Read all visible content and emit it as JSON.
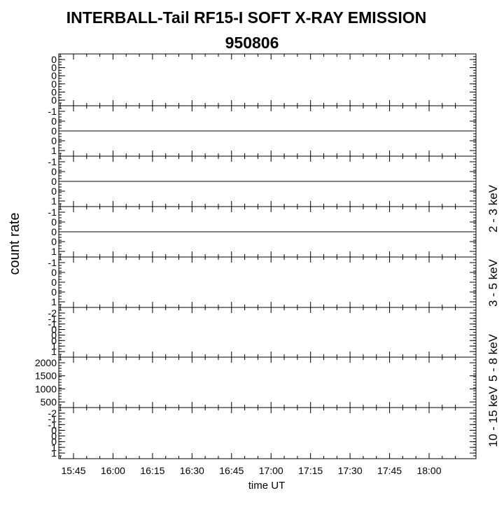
{
  "chart_data": {
    "type": "line",
    "title": "INTERBALL-Tail RF15-I SOFT X-RAY EMISSION",
    "subtitle": "950806",
    "xlabel": "time UT",
    "ylabel": "count rate",
    "x_ticks": [
      "15:45",
      "16:00",
      "16:15",
      "16:30",
      "16:45",
      "17:00",
      "17:15",
      "17:30",
      "17:45",
      "18:00"
    ],
    "energy_labels": [
      "2 - 3 keV",
      "3 - 5 keV",
      "5 - 8 keV",
      "10 - 15 keV"
    ],
    "panels": [
      {
        "tick_labels": [
          "0",
          "0",
          "0",
          "0",
          "0",
          "0"
        ],
        "series": []
      },
      {
        "tick_labels": [
          "-1",
          "0",
          "0",
          "0",
          "1"
        ],
        "series": [
          {
            "values": [
              0,
              0
            ]
          }
        ]
      },
      {
        "tick_labels": [
          "-1",
          "0",
          "0",
          "0",
          "1"
        ],
        "series": [
          {
            "values": [
              0,
              0
            ]
          }
        ]
      },
      {
        "tick_labels": [
          "-1",
          "0",
          "0",
          "0",
          "1"
        ],
        "series": [
          {
            "values": [
              0,
              0
            ]
          }
        ]
      },
      {
        "tick_labels": [
          "-1",
          "0",
          "0",
          "0",
          "1"
        ],
        "series": []
      },
      {
        "tick_labels": [
          "-2",
          "-1",
          "-1",
          "0",
          "0",
          "0",
          "1",
          "1"
        ],
        "series": []
      },
      {
        "tick_labels": [
          "2000",
          "1500",
          "1000",
          "500"
        ],
        "series": []
      },
      {
        "tick_labels": [
          "-2",
          "-1",
          "-1",
          "0",
          "0",
          "0",
          "1",
          "1"
        ],
        "series": []
      }
    ]
  }
}
